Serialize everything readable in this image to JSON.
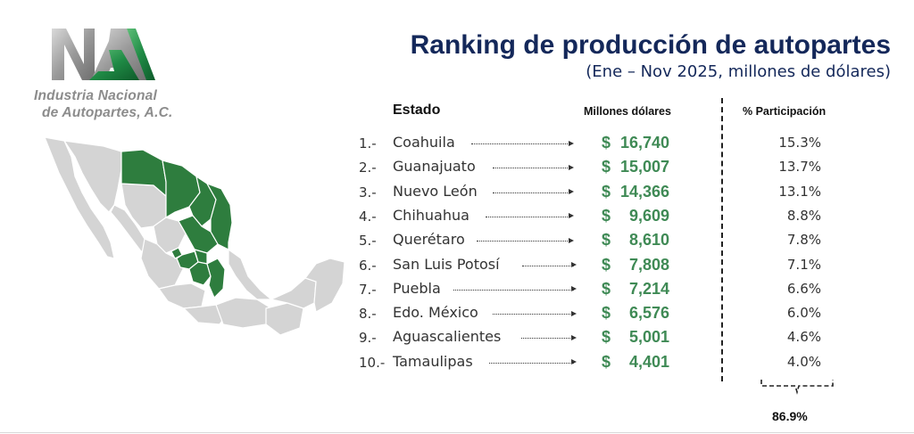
{
  "logo": {
    "line1": "Industria Nacional",
    "line2": "de Autopartes, A.C."
  },
  "header": {
    "title": "Ranking de producción de autopartes",
    "subtitle": "(Ene – Nov 2025, millones de dólares)"
  },
  "columns": {
    "estado": "Estado",
    "millones": "Millones dólares",
    "participacion": "% Participación"
  },
  "currency_symbol": "$",
  "rows": [
    {
      "rank": "1.-",
      "state": "Coahuila",
      "value": "16,740",
      "pct": "15.3%"
    },
    {
      "rank": "2.-",
      "state": "Guanajuato",
      "value": "15,007",
      "pct": "13.7%"
    },
    {
      "rank": "3.-",
      "state": "Nuevo León",
      "value": "14,366",
      "pct": "13.1%"
    },
    {
      "rank": "4.-",
      "state": "Chihuahua",
      "value": "9,609",
      "pct": "8.8%"
    },
    {
      "rank": "5.-",
      "state": "Querétaro",
      "value": "8,610",
      "pct": "7.8%"
    },
    {
      "rank": "6.-",
      "state": "San Luis Potosí",
      "value": "7,808",
      "pct": "7.1%"
    },
    {
      "rank": "7.-",
      "state": "Puebla",
      "value": "7,214",
      "pct": "6.6%"
    },
    {
      "rank": "8.-",
      "state": "Edo. México",
      "value": "6,576",
      "pct": "6.0%"
    },
    {
      "rank": "9.-",
      "state": "Aguascalientes",
      "value": "5,001",
      "pct": "4.6%"
    },
    {
      "rank": "10.-",
      "state": "Tamaulipas",
      "value": "4,401",
      "pct": "4.0%"
    }
  ],
  "total_pct": "86.9%",
  "colors": {
    "title": "#14285a",
    "value_green": "#3f8a55",
    "map_highlight": "#2e7d3e",
    "map_base": "#d4d4d4",
    "logo_green": "#1f8a45",
    "logo_gray": "#a8a8a8"
  }
}
